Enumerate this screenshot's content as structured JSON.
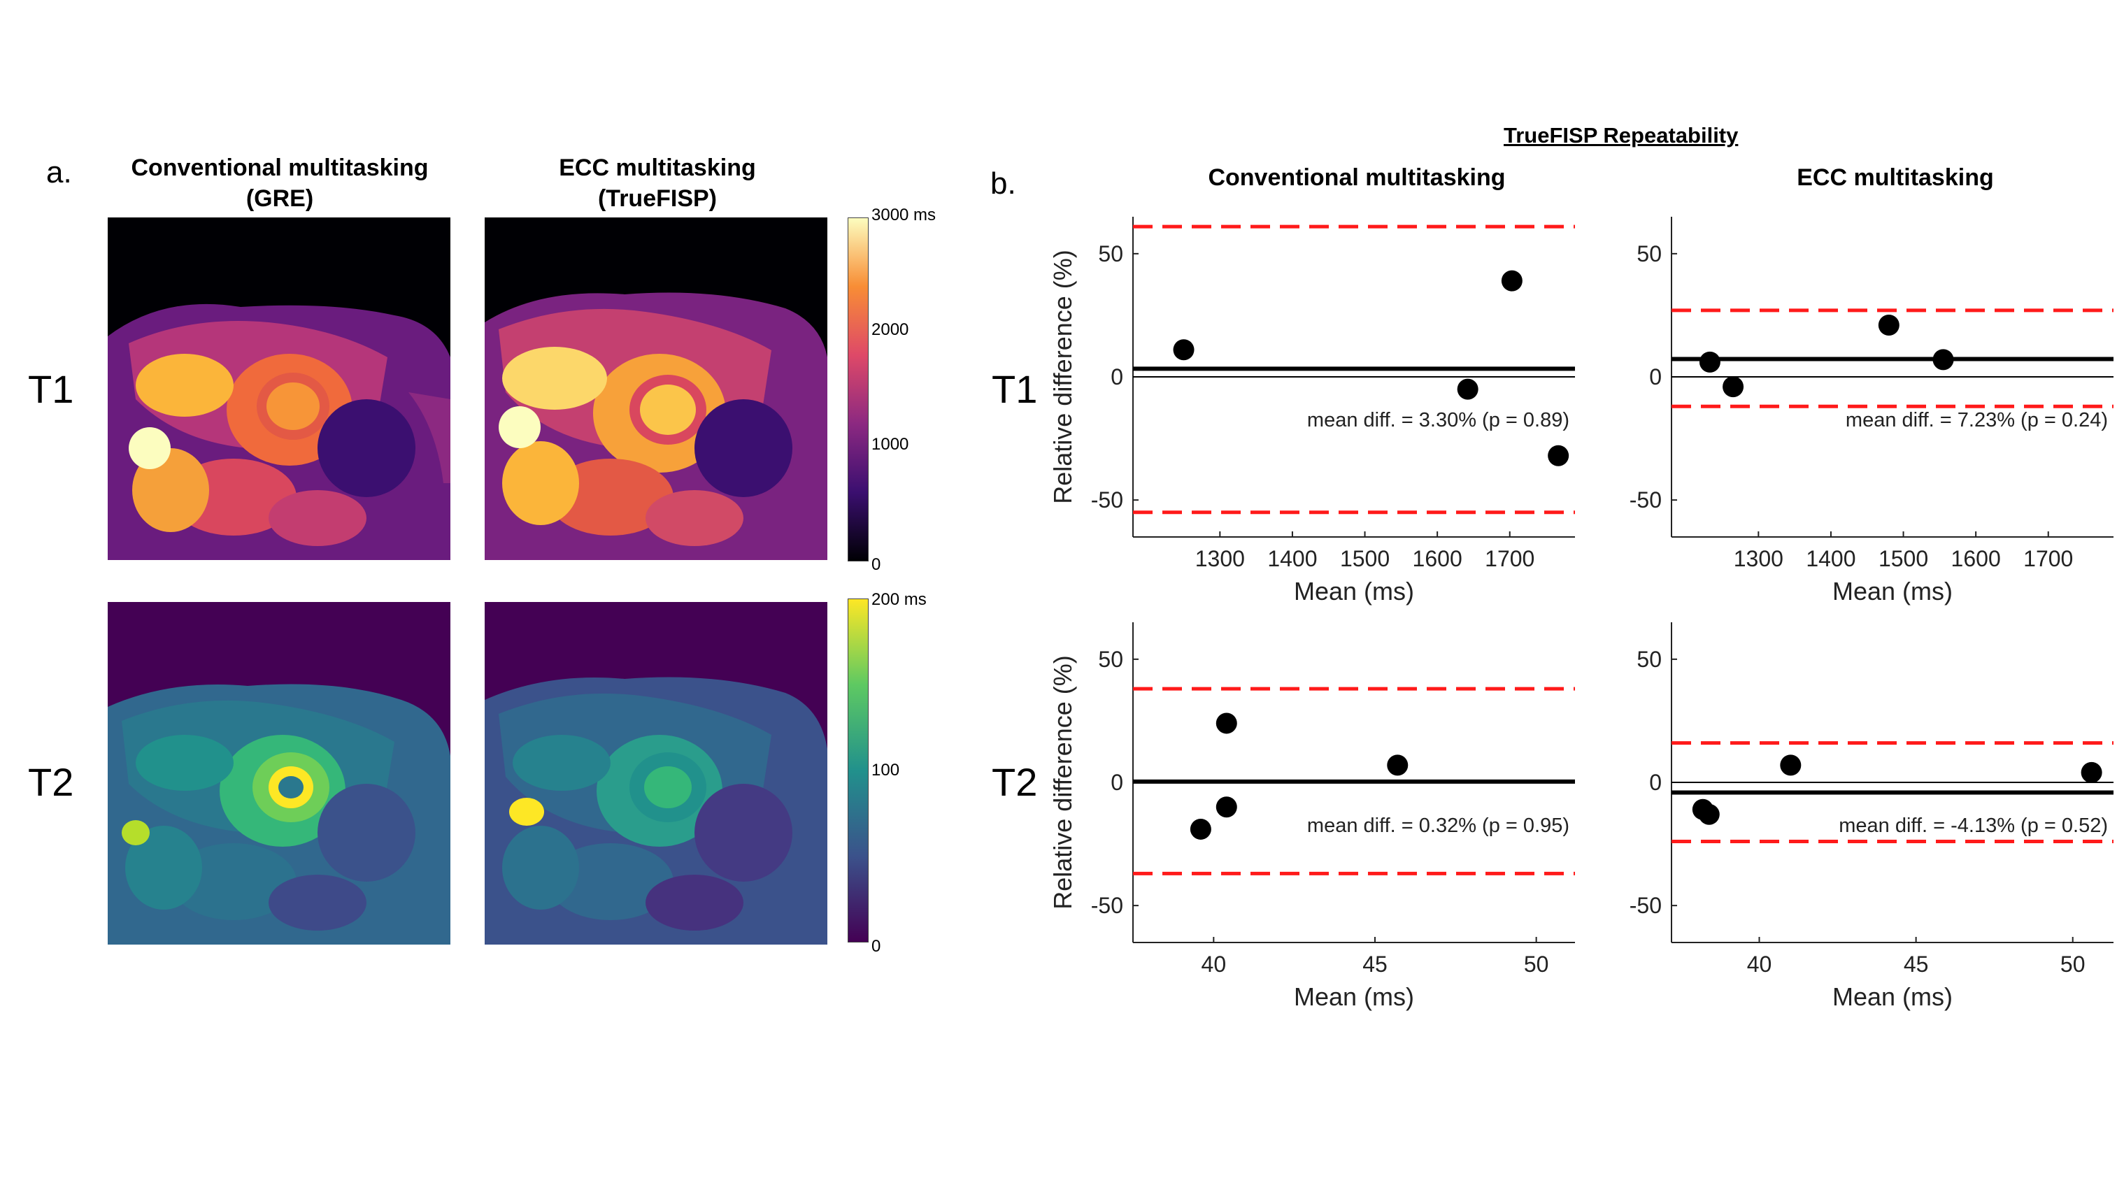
{
  "panel_a": {
    "letter": "a.",
    "col_titles": [
      {
        "line1": "Conventional multitasking",
        "line2": "(GRE)"
      },
      {
        "line1": "ECC multitasking",
        "line2": "(TrueFISP)"
      }
    ],
    "row_labels": [
      "T1",
      "T2"
    ],
    "colorbars": [
      {
        "name": "T1 colorbar",
        "ticks": [
          "3000 ms",
          "2000",
          "1000",
          "0"
        ],
        "colors": [
          "#000004",
          "#3b0f70",
          "#8c2981",
          "#de4968",
          "#f88d35",
          "#fcfdbf"
        ]
      },
      {
        "name": "T2 colorbar",
        "ticks": [
          "200 ms",
          "100",
          "0"
        ],
        "colors": [
          "#440154",
          "#3b528b",
          "#21918c",
          "#5ec962",
          "#fde725"
        ]
      }
    ]
  },
  "panel_b": {
    "letter": "b.",
    "overall_title": "TrueFISP Repeatability",
    "col_titles": [
      "Conventional multitasking",
      "ECC multitasking"
    ],
    "row_labels": [
      "T1",
      "T2"
    ]
  },
  "chart_data": [
    {
      "type": "scatter",
      "row": "T1",
      "column": "Conventional multitasking",
      "xlabel": "Mean (ms)",
      "ylabel": "Relative difference (%)",
      "xlim": [
        1180,
        1790
      ],
      "ylim": [
        -65,
        65
      ],
      "xticks": [
        1300,
        1400,
        1500,
        1600,
        1700
      ],
      "yticks": [
        50,
        0,
        -50
      ],
      "points": [
        [
          1250,
          11
        ],
        [
          1642,
          -5
        ],
        [
          1703,
          39
        ],
        [
          1767,
          -32
        ]
      ],
      "mean_line": 3.3,
      "limits_of_agreement": [
        61,
        -55
      ],
      "zero_line": 0,
      "annotation": "mean diff. = 3.30% (p = 0.89)"
    },
    {
      "type": "scatter",
      "row": "T1",
      "column": "ECC multitasking",
      "xlabel": "Mean (ms)",
      "ylabel": "",
      "xlim": [
        1180,
        1790
      ],
      "ylim": [
        -65,
        65
      ],
      "xticks": [
        1300,
        1400,
        1500,
        1600,
        1700
      ],
      "yticks": [
        50,
        0,
        -50
      ],
      "points": [
        [
          1233,
          6
        ],
        [
          1265,
          -4
        ],
        [
          1480,
          21
        ],
        [
          1555,
          7
        ]
      ],
      "mean_line": 7.23,
      "limits_of_agreement": [
        27,
        -12
      ],
      "zero_line": 0,
      "annotation": "mean diff. = 7.23% (p = 0.24)"
    },
    {
      "type": "scatter",
      "row": "T2",
      "column": "Conventional multitasking",
      "xlabel": "Mean (ms)",
      "ylabel": "Relative difference (%)",
      "xlim": [
        37.5,
        51.2
      ],
      "ylim": [
        -65,
        65
      ],
      "xticks": [
        40,
        45,
        50
      ],
      "yticks": [
        50,
        0,
        -50
      ],
      "points": [
        [
          39.6,
          -19
        ],
        [
          40.4,
          24
        ],
        [
          40.4,
          -10
        ],
        [
          45.7,
          7
        ]
      ],
      "mean_line": 0.32,
      "limits_of_agreement": [
        38,
        -37
      ],
      "zero_line": 0,
      "annotation": "mean diff. = 0.32% (p = 0.95)"
    },
    {
      "type": "scatter",
      "row": "T2",
      "column": "ECC multitasking",
      "xlabel": "Mean (ms)",
      "ylabel": "",
      "xlim": [
        37.2,
        51.3
      ],
      "ylim": [
        -65,
        65
      ],
      "xticks": [
        40,
        45,
        50
      ],
      "yticks": [
        50,
        0,
        -50
      ],
      "points": [
        [
          38.2,
          -11
        ],
        [
          38.4,
          -13
        ],
        [
          41.0,
          7
        ],
        [
          50.6,
          4
        ]
      ],
      "mean_line": -4.13,
      "limits_of_agreement": [
        16,
        -24
      ],
      "zero_line": 0,
      "annotation": "mean diff. = -4.13% (p = 0.52)"
    }
  ]
}
